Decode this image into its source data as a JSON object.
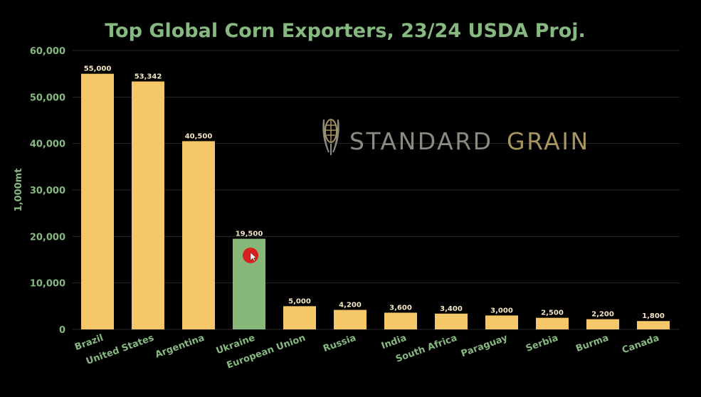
{
  "colors": {
    "background": "#000000",
    "bar": "#f6c768",
    "highlight_bar": "#88b77a",
    "text_green": "#86b980",
    "value_label": "#f3e6c3",
    "grid": "#2a2a2a",
    "watermark_standard": "#8a8a80",
    "watermark_grain": "#a8945f",
    "cursor_marker": "#d91f1f"
  },
  "watermark": {
    "icon": "corn-icon",
    "word1": "STANDARD",
    "word2": "GRAIN"
  },
  "chart_data": {
    "type": "bar",
    "title": "Top Global Corn Exporters, 23/24 USDA Proj.",
    "ylabel": "1,000mt",
    "xlabel": "",
    "ylim": [
      0,
      60000
    ],
    "yticks": [
      "0",
      "10,000",
      "20,000",
      "30,000",
      "40,000",
      "50,000",
      "60,000"
    ],
    "grid": true,
    "highlighted_category": "Ukraine",
    "categories": [
      "Brazil",
      "United States",
      "Argentina",
      "Ukraine",
      "European Union",
      "Russia",
      "India",
      "South Africa",
      "Paraguay",
      "Serbia",
      "Burma",
      "Canada"
    ],
    "values": [
      55000,
      53342,
      40500,
      19500,
      5000,
      4200,
      3600,
      3400,
      3000,
      2500,
      2200,
      1800
    ],
    "value_labels": [
      "55,000",
      "53,342",
      "40,500",
      "19,500",
      "5,000",
      "4,200",
      "3,600",
      "3,400",
      "3,000",
      "2,500",
      "2,200",
      "1,800"
    ]
  }
}
